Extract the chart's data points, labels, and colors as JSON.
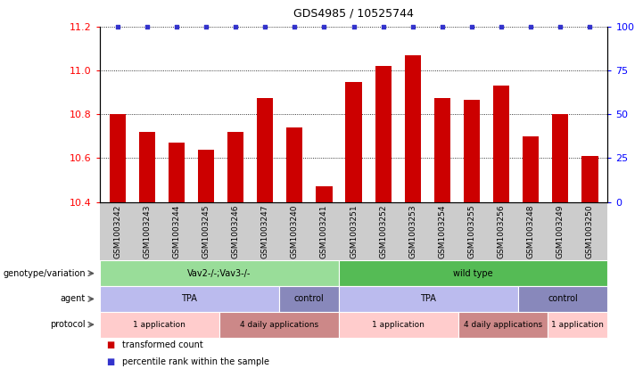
{
  "title": "GDS4985 / 10525744",
  "samples": [
    "GSM1003242",
    "GSM1003243",
    "GSM1003244",
    "GSM1003245",
    "GSM1003246",
    "GSM1003247",
    "GSM1003240",
    "GSM1003241",
    "GSM1003251",
    "GSM1003252",
    "GSM1003253",
    "GSM1003254",
    "GSM1003255",
    "GSM1003256",
    "GSM1003248",
    "GSM1003249",
    "GSM1003250"
  ],
  "bar_values": [
    10.8,
    10.72,
    10.67,
    10.64,
    10.72,
    10.875,
    10.74,
    10.47,
    10.945,
    11.02,
    11.07,
    10.875,
    10.865,
    10.93,
    10.7,
    10.8,
    10.61
  ],
  "percentile_values": [
    100,
    100,
    100,
    100,
    100,
    100,
    100,
    100,
    100,
    100,
    100,
    100,
    100,
    100,
    100,
    100,
    100
  ],
  "ylim_left": [
    10.4,
    11.2
  ],
  "ylim_right": [
    0,
    100
  ],
  "yticks_left": [
    10.4,
    10.6,
    10.8,
    11.0,
    11.2
  ],
  "yticks_right": [
    0,
    25,
    50,
    75,
    100
  ],
  "bar_color": "#cc0000",
  "dot_color": "#3333cc",
  "plot_bg": "#ffffff",
  "fig_bg": "#ffffff",
  "xtick_bg": "#cccccc",
  "annotation_rows": [
    {
      "label": "genotype/variation",
      "segments": [
        {
          "text": "Vav2-/-;Vav3-/-",
          "span": 8,
          "color": "#99dd99"
        },
        {
          "text": "wild type",
          "span": 9,
          "color": "#55bb55"
        }
      ]
    },
    {
      "label": "agent",
      "segments": [
        {
          "text": "TPA",
          "span": 6,
          "color": "#bbbbee"
        },
        {
          "text": "control",
          "span": 2,
          "color": "#8888bb"
        },
        {
          "text": "TPA",
          "span": 6,
          "color": "#bbbbee"
        },
        {
          "text": "control",
          "span": 3,
          "color": "#8888bb"
        }
      ]
    },
    {
      "label": "protocol",
      "segments": [
        {
          "text": "1 application",
          "span": 4,
          "color": "#ffcccc"
        },
        {
          "text": "4 daily applications",
          "span": 4,
          "color": "#cc8888"
        },
        {
          "text": "1 application",
          "span": 4,
          "color": "#ffcccc"
        },
        {
          "text": "4 daily applications",
          "span": 3,
          "color": "#cc8888"
        },
        {
          "text": "1 application",
          "span": 2,
          "color": "#ffcccc"
        }
      ]
    }
  ],
  "legend_items": [
    {
      "color": "#cc0000",
      "label": "transformed count"
    },
    {
      "color": "#3333cc",
      "label": "percentile rank within the sample"
    }
  ]
}
